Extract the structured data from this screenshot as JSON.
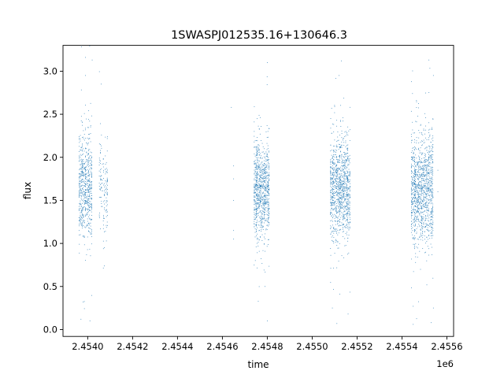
{
  "chart_data": {
    "type": "scatter",
    "title": "1SWASPJ012535.16+130646.3",
    "xlabel": "time",
    "ylabel": "flux",
    "x_offset_label": "1e6",
    "xlim": [
      2.45389,
      2.45563
    ],
    "ylim": [
      -0.08,
      3.3
    ],
    "x_ticks": [
      2.454,
      2.4542,
      2.4544,
      2.4546,
      2.4548,
      2.455,
      2.4552,
      2.4554,
      2.4556
    ],
    "x_tick_labels": [
      "2.4540",
      "2.4542",
      "2.4544",
      "2.4546",
      "2.4548",
      "2.4550",
      "2.4552",
      "2.4554",
      "2.4556"
    ],
    "y_ticks": [
      0.0,
      0.5,
      1.0,
      1.5,
      2.0,
      2.5,
      3.0
    ],
    "y_tick_labels": [
      "0.0",
      "0.5",
      "1.0",
      "1.5",
      "2.0",
      "2.5",
      "3.0"
    ],
    "grid": false,
    "marker_color": "#1f77b4",
    "series": [
      {
        "clusters": [
          {
            "x_start": 2.45396,
            "x_end": 2.45402,
            "y_center": 1.65,
            "y_spread": 0.35,
            "count": 650
          },
          {
            "x_start": 2.45405,
            "x_end": 2.45409,
            "y_center": 1.62,
            "y_spread": 0.33,
            "count": 150
          },
          {
            "x_start": 2.45474,
            "x_end": 2.45481,
            "y_center": 1.62,
            "y_spread": 0.32,
            "count": 900
          },
          {
            "x_start": 2.45508,
            "x_end": 2.45517,
            "y_center": 1.62,
            "y_spread": 0.35,
            "count": 1100
          },
          {
            "x_start": 2.45544,
            "x_end": 2.45554,
            "y_center": 1.62,
            "y_spread": 0.37,
            "count": 1200
          }
        ],
        "outliers": [
          {
            "x": 2.45397,
            "y": 0.12
          },
          {
            "x": 2.45398,
            "y": 0.32
          },
          {
            "x": 2.45399,
            "y": 3.16
          },
          {
            "x": 2.45401,
            "y": 0.1
          },
          {
            "x": 2.45402,
            "y": 3.13
          },
          {
            "x": 2.45406,
            "y": 2.85
          },
          {
            "x": 2.45399,
            "y": 2.95
          },
          {
            "x": 2.45464,
            "y": 2.58
          },
          {
            "x": 2.45465,
            "y": 1.9
          },
          {
            "x": 2.45465,
            "y": 1.75
          },
          {
            "x": 2.45465,
            "y": 1.5
          },
          {
            "x": 2.45465,
            "y": 1.15
          },
          {
            "x": 2.45465,
            "y": 1.05
          },
          {
            "x": 2.4548,
            "y": 3.1
          },
          {
            "x": 2.4548,
            "y": 0.1
          },
          {
            "x": 2.45479,
            "y": 0.5
          },
          {
            "x": 2.45509,
            "y": 0.25
          },
          {
            "x": 2.45511,
            "y": 0.07
          },
          {
            "x": 2.45513,
            "y": 3.12
          },
          {
            "x": 2.45512,
            "y": 2.95
          },
          {
            "x": 2.45516,
            "y": 0.18
          },
          {
            "x": 2.45545,
            "y": 0.06
          },
          {
            "x": 2.45545,
            "y": 0.27
          },
          {
            "x": 2.45552,
            "y": 3.13
          },
          {
            "x": 2.45553,
            "y": 0.08
          },
          {
            "x": 2.45554,
            "y": 0.25
          },
          {
            "x": 2.45554,
            "y": 2.95
          },
          {
            "x": 2.45556,
            "y": 1.85
          },
          {
            "x": 2.45556,
            "y": 1.6
          }
        ]
      }
    ]
  }
}
